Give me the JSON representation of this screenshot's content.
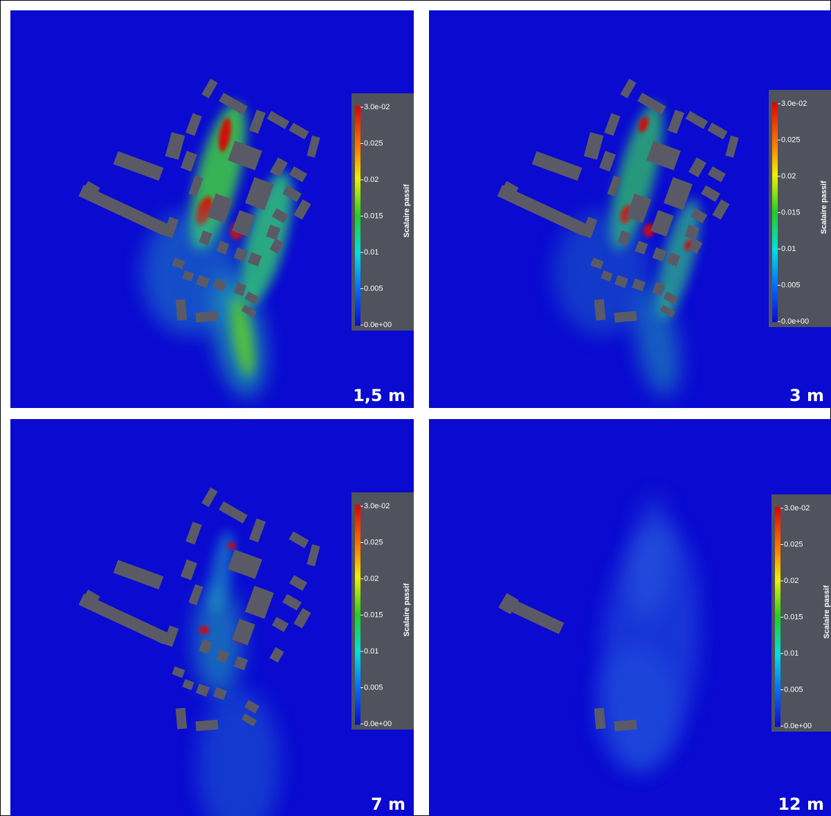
{
  "panels": [
    {
      "label": "1,5 m",
      "colorbar": {
        "title": "Scalaire passif",
        "ticks": [
          "3.0e-02",
          "0.025",
          "0.02",
          "0.015",
          "0.01",
          "0.005",
          "0.0e+00"
        ]
      }
    },
    {
      "label": "3 m",
      "colorbar": {
        "title": "Scalaire passif",
        "ticks": [
          "3.0e-02",
          "0.025",
          "0.02",
          "0.015",
          "0.01",
          "0.005",
          "0.0e+00"
        ]
      }
    },
    {
      "label": "7 m",
      "colorbar": {
        "title": "Scalaire passif",
        "ticks": [
          "3.0e-02",
          "0.025",
          "0.02",
          "0.015",
          "0.01",
          "0.005",
          "0.0e+00"
        ]
      }
    },
    {
      "label": "12 m",
      "colorbar": {
        "title": "Scalaire passif",
        "ticks": [
          "3.0e-02",
          "0.025",
          "0.02",
          "0.015",
          "0.01",
          "0.005",
          "0.0e+00"
        ]
      }
    }
  ]
}
